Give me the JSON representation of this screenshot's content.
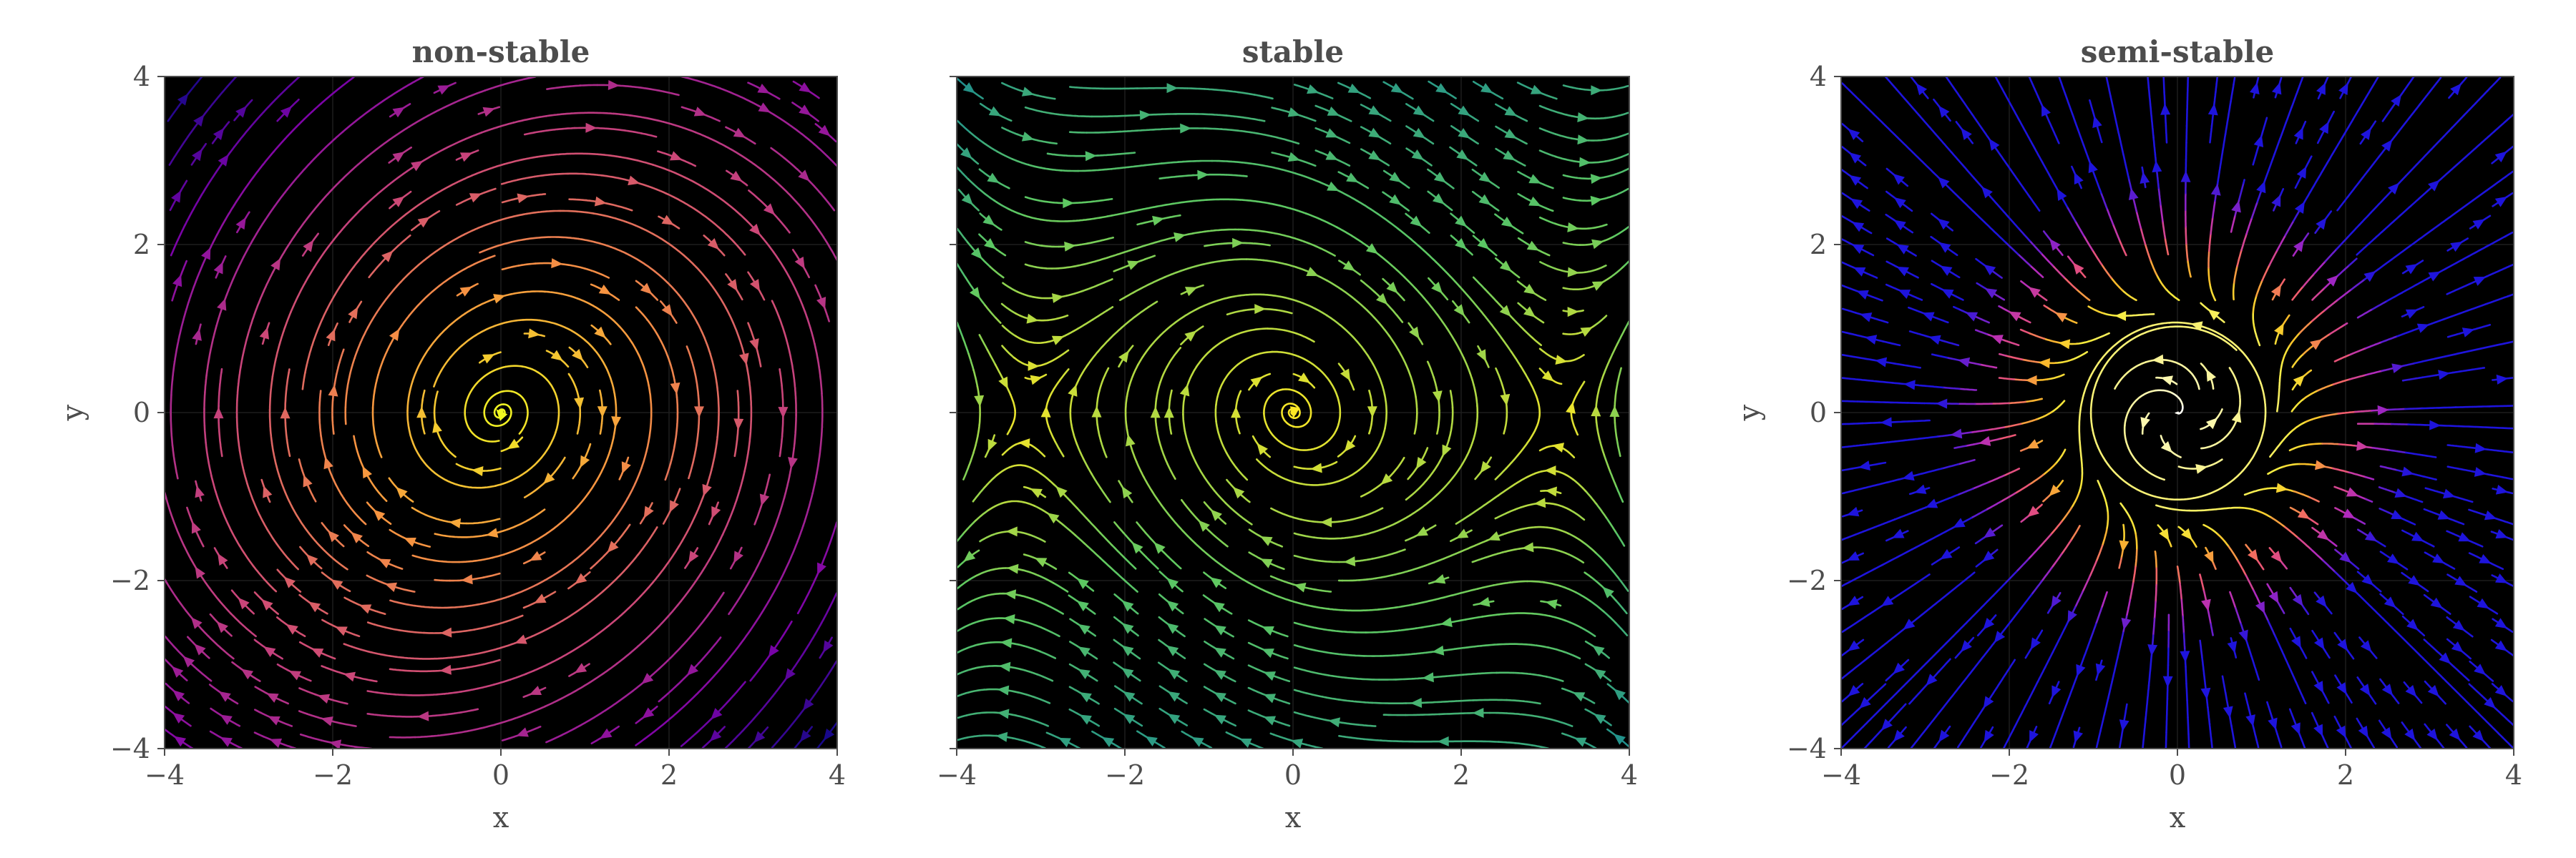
{
  "chart_data": [
    {
      "type": "streamplot",
      "title": "non-stable",
      "xlabel": "x",
      "ylabel": "y",
      "xlim": [
        -4,
        4
      ],
      "ylim": [
        -4,
        4
      ],
      "xticks": [
        -4,
        -2,
        0,
        2,
        4
      ],
      "yticks": [
        -4,
        -2,
        0,
        2,
        4
      ],
      "xtick_labels": [
        "−4",
        "−2",
        "0",
        "2",
        "4"
      ],
      "ytick_labels": [
        "−4",
        "−2",
        "0",
        "2",
        "4"
      ],
      "show_yticklabels": true,
      "show_ylabel": true,
      "background": "#000000",
      "colormap": "plasma",
      "vector_field": {
        "u": "y",
        "v": "-x + 0.3*y"
      },
      "grid": true
    },
    {
      "type": "streamplot",
      "title": "stable",
      "xlabel": "x",
      "ylabel": "",
      "xlim": [
        -4,
        4
      ],
      "ylim": [
        -4,
        4
      ],
      "xticks": [
        -4,
        -2,
        0,
        2,
        4
      ],
      "yticks": [
        -4,
        -2,
        0,
        2,
        4
      ],
      "xtick_labels": [
        "−4",
        "−2",
        "0",
        "2",
        "4"
      ],
      "ytick_labels": [],
      "show_yticklabels": false,
      "show_ylabel": false,
      "background": "#000000",
      "colormap": "viridis",
      "vector_field": {
        "u": "y",
        "v": "-x - 0.3*y + 0.1*x^3"
      },
      "grid": true
    },
    {
      "type": "streamplot",
      "title": "semi-stable",
      "xlabel": "x",
      "ylabel": "y",
      "xlim": [
        -4,
        4
      ],
      "ylim": [
        -4,
        4
      ],
      "xticks": [
        -4,
        -2,
        0,
        2,
        4
      ],
      "yticks": [
        -4,
        -2,
        0,
        2,
        4
      ],
      "xtick_labels": [
        "−4",
        "−2",
        "0",
        "2",
        "4"
      ],
      "ytick_labels": [
        "−4",
        "−2",
        "0",
        "2",
        "4"
      ],
      "show_yticklabels": true,
      "show_ylabel": true,
      "background": "#000000",
      "colormap": "plasma-to-white",
      "vector_field": {
        "u": "x*(r^2-1)^2 - y",
        "v": "y*(r^2-1)^2 + x"
      },
      "grid": true
    }
  ]
}
